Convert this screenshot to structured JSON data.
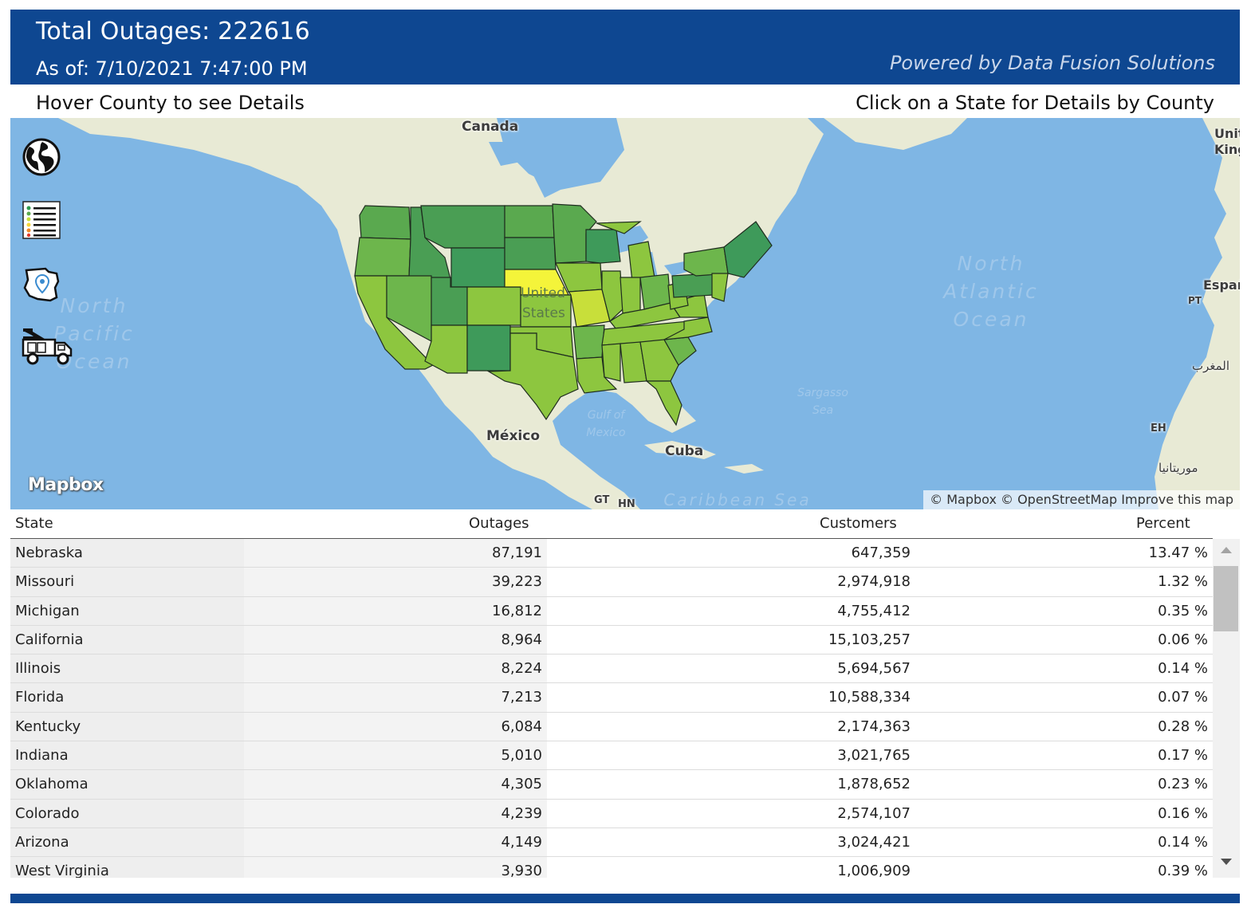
{
  "header": {
    "title": "Total Outages: 222616",
    "as_of": "As of: 7/10/2021 7:47:00 PM",
    "powered_by": "Powered by Data Fusion Solutions"
  },
  "instructions": {
    "left": "Hover County to see Details",
    "right": "Click on a State for Details by County"
  },
  "map": {
    "labels": {
      "canada": "Canada",
      "united_states_1": "United",
      "united_states_2": "States",
      "mexico": "México",
      "cuba": "Cuba",
      "gulf": "Gulf of Mexico",
      "north_pacific": "North Pacific Ocean",
      "north_atlantic": "North Atlantic Ocean",
      "sargasso": "Sargasso Sea",
      "caribbean": "Caribbean Sea",
      "uk": "United Kingdom",
      "espana": "España",
      "pt": "PT",
      "morocco": "المغرب",
      "eh": "EH",
      "mauritania": "موريتانيا",
      "gt": "GT",
      "hn": "HN"
    },
    "logo": "Mapbox",
    "attribution": "© Mapbox © OpenStreetMap Improve this map",
    "colors": {
      "ocean": "#7fb6e4",
      "land": "#e8ead5",
      "highlight": "#f4f43a",
      "outage_low": "#3e9a5a",
      "outage_mid": "#8cc63f"
    }
  },
  "tools": [
    {
      "icon": "globe-icon"
    },
    {
      "icon": "legend-list-icon"
    },
    {
      "icon": "state-location-icon"
    },
    {
      "icon": "utility-truck-icon"
    }
  ],
  "table": {
    "columns": [
      "State",
      "Outages",
      "Customers",
      "Percent"
    ],
    "rows": [
      {
        "state": "Nebraska",
        "outages": "87,191",
        "customers": "647,359",
        "percent": "13.47 %"
      },
      {
        "state": "Missouri",
        "outages": "39,223",
        "customers": "2,974,918",
        "percent": "1.32 %"
      },
      {
        "state": "Michigan",
        "outages": "16,812",
        "customers": "4,755,412",
        "percent": "0.35 %"
      },
      {
        "state": "California",
        "outages": "8,964",
        "customers": "15,103,257",
        "percent": "0.06 %"
      },
      {
        "state": "Illinois",
        "outages": "8,224",
        "customers": "5,694,567",
        "percent": "0.14 %"
      },
      {
        "state": "Florida",
        "outages": "7,213",
        "customers": "10,588,334",
        "percent": "0.07 %"
      },
      {
        "state": "Kentucky",
        "outages": "6,084",
        "customers": "2,174,363",
        "percent": "0.28 %"
      },
      {
        "state": "Indiana",
        "outages": "5,010",
        "customers": "3,021,765",
        "percent": "0.17 %"
      },
      {
        "state": "Oklahoma",
        "outages": "4,305",
        "customers": "1,878,652",
        "percent": "0.23 %"
      },
      {
        "state": "Colorado",
        "outages": "4,239",
        "customers": "2,574,107",
        "percent": "0.16 %"
      },
      {
        "state": "Arizona",
        "outages": "4,149",
        "customers": "3,024,421",
        "percent": "0.14 %"
      },
      {
        "state": "West Virginia",
        "outages": "3,930",
        "customers": "1,006,909",
        "percent": "0.39 %"
      }
    ]
  }
}
